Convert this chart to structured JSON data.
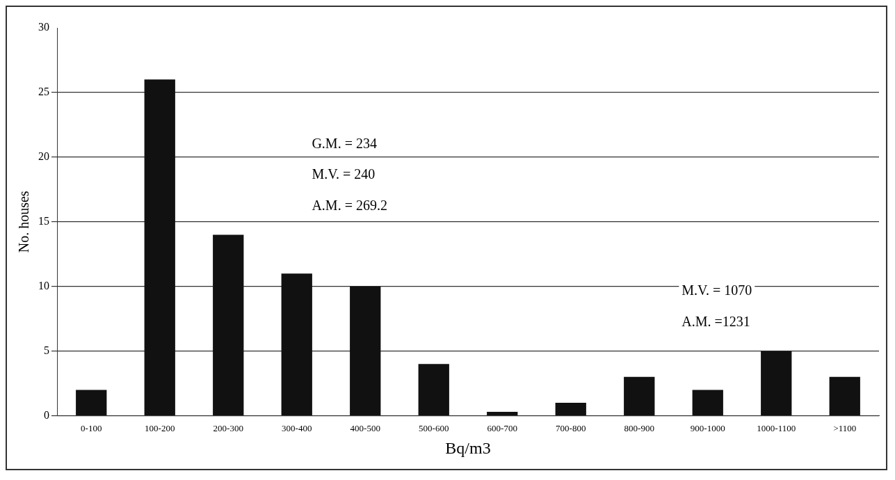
{
  "chart_data": {
    "type": "bar",
    "xlabel": "Bq/m3",
    "ylabel": "No. houses",
    "categories": [
      "0-100",
      "100-200",
      "200-300",
      "300-400",
      "400-500",
      "500-600",
      "600-700",
      "700-800",
      "800-900",
      "900-1000",
      "1000-1100",
      ">1100"
    ],
    "values": [
      2,
      26,
      14,
      11,
      10,
      4,
      0.3,
      1,
      3,
      2,
      5,
      3
    ],
    "color": "#111111",
    "ylim": [
      0,
      30
    ],
    "yticks": [
      0,
      5,
      10,
      15,
      20,
      25,
      30
    ],
    "grid": "y",
    "annotations": [
      "G.M. = 234",
      "M.V. = 240",
      "A.M. = 269.2",
      "M.V. = 1070",
      "A.M. =1231"
    ]
  }
}
